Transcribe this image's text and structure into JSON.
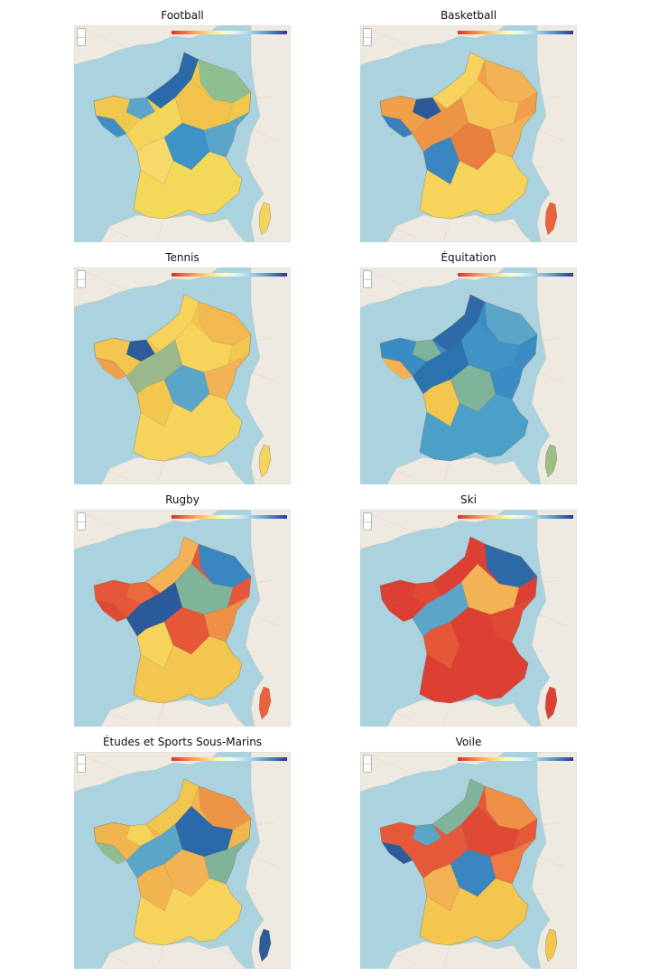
{
  "maps": [
    {
      "title": "Football",
      "dominant": "#f1c84e",
      "regions": [
        "#3f8fc2",
        "#5aa5c8",
        "#2a6aa8",
        "#8fbf91",
        "#f3d45c",
        "#f2c24c",
        "#f7d86a",
        "#3d93c6",
        "#5aa5c8",
        "#f4d85a"
      ],
      "corsica": "#f3d45c"
    },
    {
      "title": "Basketball",
      "dominant": "#f1a04a",
      "regions": [
        "#3d7fbb",
        "#2a5a9a",
        "#f6d35a",
        "#f3b354",
        "#ee9446",
        "#f5c455",
        "#3a86c0",
        "#e87f3f",
        "#f3b354",
        "#f6d35a"
      ],
      "corsica": "#e8633c"
    },
    {
      "title": "Tennis",
      "dominant": "#f3c650",
      "regions": [
        "#f0a04a",
        "#2e5b99",
        "#f6d35a",
        "#f1b94e",
        "#9ab88a",
        "#f6d35a",
        "#f3c650",
        "#5aa5c8",
        "#f3b354",
        "#f6d35a"
      ],
      "corsica": "#f3d45c"
    },
    {
      "title": "Équitation",
      "dominant": "#3a8dc4",
      "regions": [
        "#f3b354",
        "#7fb49a",
        "#2f6aa8",
        "#5aa5c8",
        "#2a73ae",
        "#3f93c6",
        "#f3c650",
        "#7fb49a",
        "#3a8dc4",
        "#4aa0c8"
      ],
      "corsica": "#9dbe84"
    },
    {
      "title": "Rugby",
      "dominant": "#e6573a",
      "regions": [
        "#e04a35",
        "#ea6a3e",
        "#f3b354",
        "#3a86c0",
        "#2a5a9a",
        "#7fb49a",
        "#f6d35a",
        "#e6573a",
        "#f09046",
        "#f3c650"
      ],
      "corsica": "#e8633c"
    },
    {
      "title": "Ski",
      "dominant": "#dd3f33",
      "regions": [
        "#dd3f33",
        "#e04a35",
        "#dd3f33",
        "#2f6aa8",
        "#5aa5c8",
        "#f3b354",
        "#e6573a",
        "#dd3f33",
        "#e04a35",
        "#dd3f33"
      ],
      "corsica": "#dd3f33"
    },
    {
      "title": "Études et Sports Sous-Marins",
      "dominant": "#f1b54e",
      "regions": [
        "#8fbf91",
        "#f6d35a",
        "#f3c650",
        "#ee9446",
        "#5aa5c8",
        "#2a6aa8",
        "#f1b54e",
        "#f3b354",
        "#7fb49a",
        "#f6d35a"
      ],
      "corsica": "#2e5b99"
    },
    {
      "title": "Voile",
      "dominant": "#e6583a",
      "regions": [
        "#2e5b99",
        "#5aa5c8",
        "#7fb49a",
        "#f09046",
        "#e6583a",
        "#e04a35",
        "#f3b354",
        "#3a86c0",
        "#ee7a40",
        "#f3c650"
      ],
      "corsica": "#f3c650"
    }
  ]
}
